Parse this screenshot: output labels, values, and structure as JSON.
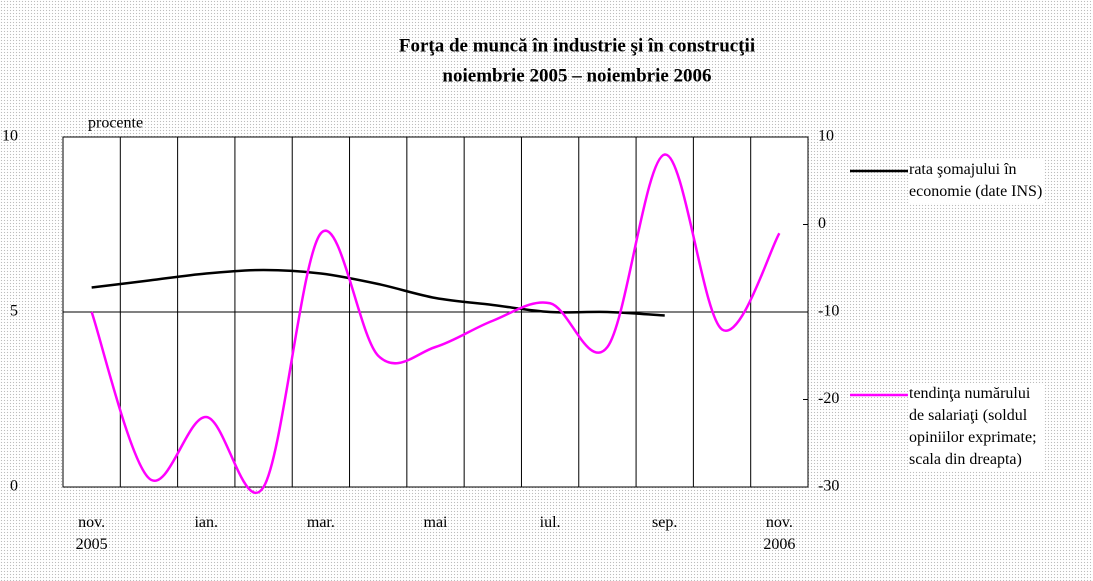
{
  "chart_data": {
    "type": "line",
    "title": "Forţa de muncă în industrie şi în construcţii",
    "subtitle": "noiembrie 2005 – noiembrie 2006",
    "ylabel": "procente",
    "categories": [
      "nov.\n2005",
      null,
      "ian.",
      null,
      "mar.",
      null,
      "mai",
      null,
      "iul.",
      null,
      "sep.",
      null,
      "nov.\n2006"
    ],
    "series": [
      {
        "name": "rata şomajului în economie (date INS)",
        "color": "#000000",
        "values": [
          5.7,
          5.9,
          6.1,
          6.2,
          6.1,
          5.8,
          5.4,
          5.2,
          5.0,
          5.0,
          4.9,
          null,
          null
        ]
      },
      {
        "name": "tendinţa numărului de salariaţi (soldul opiniilor exprimate; scala din dreapta)",
        "color": "#ff00ff",
        "axis": "y2",
        "values": [
          -10,
          -29,
          -22,
          -30,
          -1,
          -15,
          -14,
          -11,
          -9,
          -14,
          8,
          -12,
          -1
        ]
      }
    ],
    "ylim": [
      0,
      10
    ],
    "yticks": [
      0,
      5,
      10
    ],
    "y2lim": [
      -30,
      10
    ],
    "y2ticks": [
      -30,
      -20,
      -10,
      0,
      10
    ],
    "grid": true
  }
}
